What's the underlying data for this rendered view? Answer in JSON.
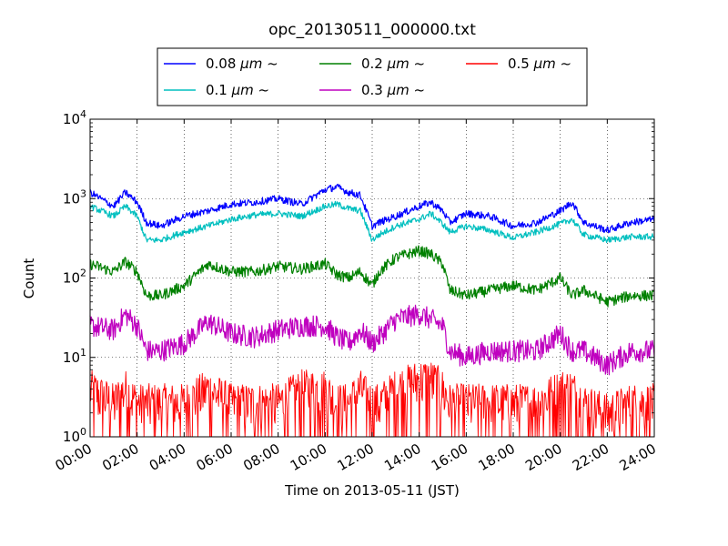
{
  "chart_data": {
    "type": "line",
    "title": "opc_20130511_000000.txt",
    "xlabel": "Time on 2013-05-11 (JST)",
    "ylabel": "Count",
    "y_scale": "log",
    "ylim": [
      1,
      10000
    ],
    "xlim": [
      "00:00",
      "24:00"
    ],
    "x_ticks": [
      "00:00",
      "02:00",
      "04:00",
      "06:00",
      "08:00",
      "10:00",
      "12:00",
      "14:00",
      "16:00",
      "18:00",
      "20:00",
      "22:00",
      "24:00"
    ],
    "y_ticks": [
      {
        "base": "10",
        "exp": "0"
      },
      {
        "base": "10",
        "exp": "1"
      },
      {
        "base": "10",
        "exp": "2"
      },
      {
        "base": "10",
        "exp": "3"
      },
      {
        "base": "10",
        "exp": "4"
      }
    ],
    "grid": true,
    "legend": "top, above plot, 3 columns",
    "x_hours": [
      0,
      1,
      1.5,
      2,
      2.4,
      3,
      4,
      5,
      6,
      7,
      8,
      9,
      10,
      10.5,
      11,
      11.5,
      12,
      12.3,
      13,
      14,
      14.5,
      15,
      15.3,
      16,
      17,
      18,
      19,
      20,
      20.5,
      21,
      22,
      23,
      24
    ],
    "series": [
      {
        "name": "0.08 μm ~",
        "name_main": "0.08 ",
        "name_unit": "μm",
        "name_tail": " ~",
        "color": "#0000ff",
        "values": [
          1200,
          800,
          1200,
          900,
          500,
          450,
          600,
          700,
          850,
          900,
          1000,
          850,
          1300,
          1400,
          1200,
          1100,
          450,
          500,
          600,
          800,
          900,
          700,
          500,
          650,
          600,
          450,
          500,
          700,
          900,
          500,
          400,
          500,
          550
        ]
      },
      {
        "name": "0.1 μm ~",
        "name_main": "0.1 ",
        "name_unit": "μm",
        "name_tail": " ~",
        "color": "#00bfbf",
        "values": [
          800,
          600,
          800,
          600,
          300,
          300,
          380,
          450,
          550,
          620,
          650,
          600,
          800,
          850,
          750,
          700,
          300,
          350,
          450,
          550,
          650,
          480,
          380,
          450,
          400,
          320,
          380,
          480,
          550,
          350,
          300,
          330,
          330
        ]
      },
      {
        "name": "0.2 μm ~",
        "name_main": "0.2 ",
        "name_unit": "μm",
        "name_tail": " ~",
        "color": "#008000",
        "values": [
          150,
          120,
          160,
          120,
          60,
          60,
          80,
          150,
          120,
          120,
          140,
          130,
          150,
          110,
          100,
          120,
          80,
          120,
          180,
          220,
          200,
          150,
          70,
          60,
          70,
          80,
          70,
          100,
          60,
          70,
          50,
          60,
          60
        ]
      },
      {
        "name": "0.3 μm ~",
        "name_main": "0.3 ",
        "name_unit": "μm",
        "name_tail": " ~",
        "color": "#bf00bf",
        "values": [
          25,
          22,
          35,
          25,
          12,
          12,
          15,
          28,
          20,
          18,
          22,
          25,
          25,
          18,
          15,
          22,
          15,
          18,
          30,
          35,
          30,
          25,
          12,
          10,
          12,
          12,
          12,
          20,
          12,
          12,
          8,
          12,
          12
        ]
      },
      {
        "name": "0.5 μm ~",
        "name_main": "0.5 ",
        "name_unit": "μm",
        "name_tail": " ~",
        "color": "#ff0000",
        "values": [
          3,
          2,
          3,
          2,
          2,
          2,
          2,
          3,
          2,
          2,
          2,
          3,
          3,
          2,
          2,
          3,
          2,
          2,
          3,
          4,
          4,
          3,
          2,
          2,
          2,
          2,
          2,
          3,
          3,
          2,
          1.5,
          2,
          2
        ]
      }
    ]
  }
}
